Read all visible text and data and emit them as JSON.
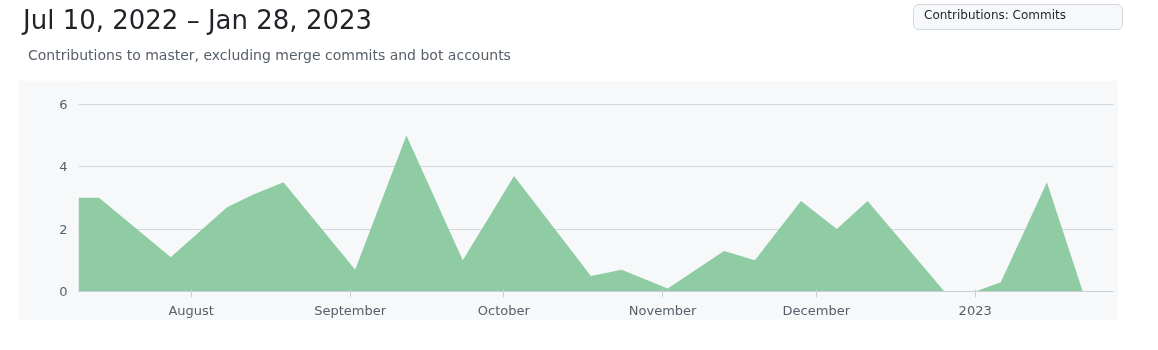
{
  "chart_data": {
    "type": "area",
    "title": "Jul 10, 2022 – Jan 28, 2023",
    "subtitle": "Contributions to master, excluding merge commits and bot accounts",
    "annotations": [
      "Contributions: Commits"
    ],
    "x": [
      "2022-07-10",
      "2022-07-14",
      "2022-07-28",
      "2022-08-08",
      "2022-08-13",
      "2022-08-19",
      "2022-09-02",
      "2022-09-12",
      "2022-09-23",
      "2022-10-03",
      "2022-10-18",
      "2022-10-24",
      "2022-11-02",
      "2022-11-13",
      "2022-11-19",
      "2022-11-28",
      "2022-12-05",
      "2022-12-11",
      "2022-12-26",
      "2023-01-01",
      "2023-01-06",
      "2023-01-15",
      "2023-01-22"
    ],
    "series": [
      {
        "color": "#8fcca3",
        "values": [
          3.0,
          3.0,
          1.1,
          2.7,
          3.1,
          3.5,
          0.7,
          5.0,
          1.0,
          3.7,
          0.5,
          0.7,
          0.1,
          1.3,
          1.0,
          2.9,
          2.0,
          2.9,
          0,
          0,
          0.3,
          3.5,
          0
        ]
      }
    ],
    "xlim": [
      "2022-07-10",
      "2023-01-28"
    ],
    "xticks": [
      {
        "value": "2022-08-01",
        "label": "August"
      },
      {
        "value": "2022-09-01",
        "label": "September"
      },
      {
        "value": "2022-10-01",
        "label": "October"
      },
      {
        "value": "2022-11-01",
        "label": "November"
      },
      {
        "value": "2022-12-01",
        "label": "December"
      },
      {
        "value": "2023-01-01",
        "label": "2023"
      }
    ],
    "ylim": [
      0,
      6.6
    ],
    "yticks": [
      0,
      2,
      4,
      6
    ],
    "grid": "y"
  }
}
